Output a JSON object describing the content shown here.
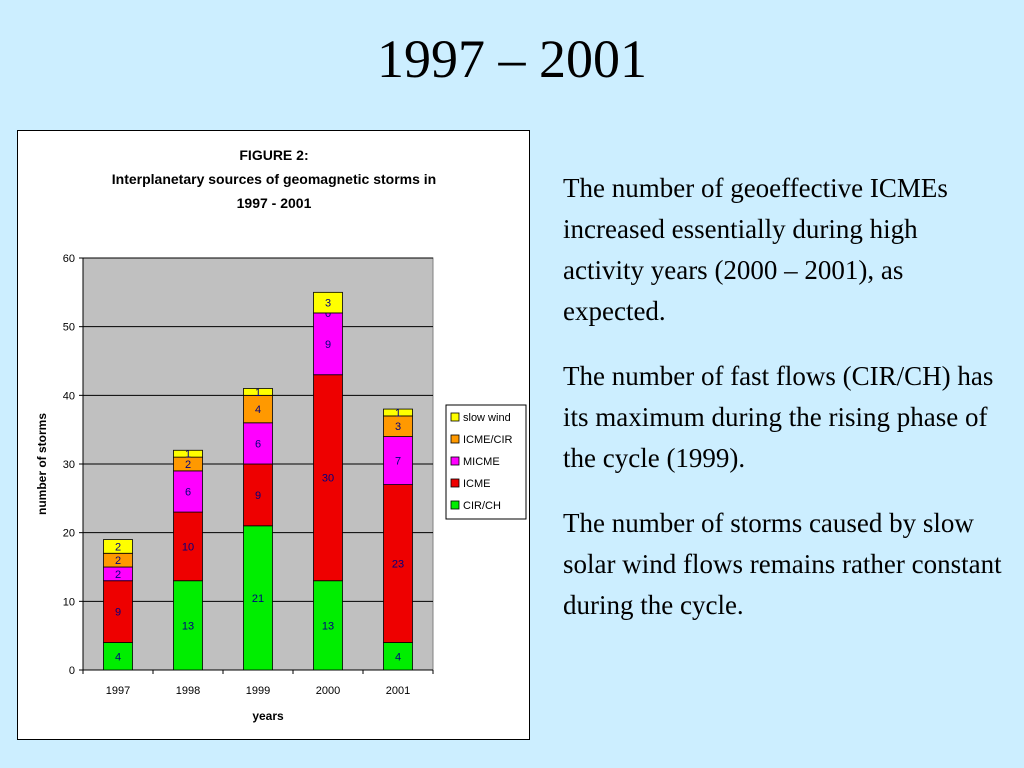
{
  "slide": {
    "title": "1997 – 2001",
    "paragraphs": [
      "The number of geoeffective ICMEs increased essentially during high activity years (2000 – 2001), as expected.",
      "The number of fast flows (CIR/CH) has its maximum during the rising phase of the cycle (1999).",
      "The number of storms caused by slow solar wind flows remains rather constant during the cycle."
    ]
  },
  "chart_data": {
    "type": "bar",
    "stacked": true,
    "title_lines": [
      "FIGURE 2:",
      "Interplanetary sources of geomagnetic storms in",
      "1997 - 2001"
    ],
    "xlabel": "years",
    "ylabel": "number of storms",
    "ylim": [
      0,
      60
    ],
    "yticks": [
      0,
      10,
      20,
      30,
      40,
      50,
      60
    ],
    "grid": true,
    "legend_position": "right",
    "categories": [
      "1997",
      "1998",
      "1999",
      "2000",
      "2001"
    ],
    "series": [
      {
        "name": "CIR/CH",
        "color": "#00ee00",
        "values": [
          4,
          13,
          21,
          13,
          4
        ]
      },
      {
        "name": "ICME",
        "color": "#ee0000",
        "values": [
          9,
          10,
          9,
          30,
          23
        ]
      },
      {
        "name": "MICME",
        "color": "#ff00ff",
        "values": [
          2,
          6,
          6,
          9,
          7
        ]
      },
      {
        "name": "ICME/CIR",
        "color": "#ff9900",
        "values": [
          2,
          2,
          4,
          0,
          3
        ]
      },
      {
        "name": "slow wind",
        "color": "#ffff00",
        "values": [
          2,
          1,
          1,
          3,
          1
        ]
      }
    ],
    "plot_background": "#c0c0c0"
  }
}
